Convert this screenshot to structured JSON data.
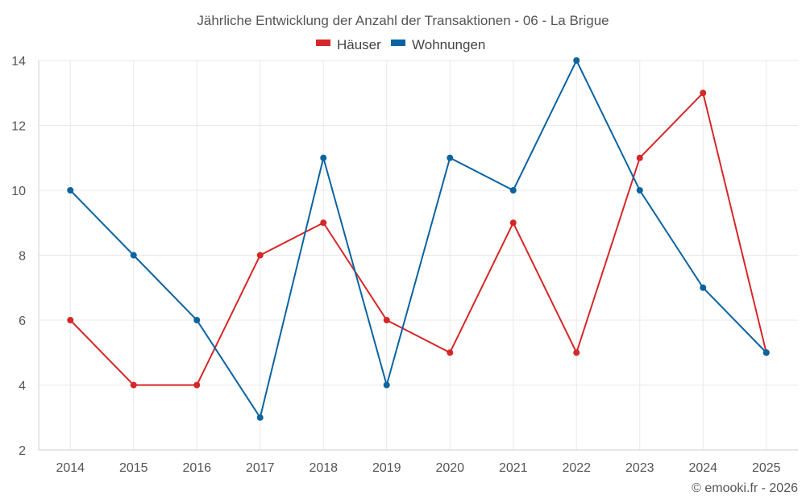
{
  "chart_data": {
    "type": "line",
    "title": "Jährliche Entwicklung der Anzahl der Transaktionen - 06 - La Brigue",
    "categories": [
      "2014",
      "2015",
      "2016",
      "2017",
      "2018",
      "2019",
      "2020",
      "2021",
      "2022",
      "2023",
      "2024",
      "2025"
    ],
    "series": [
      {
        "name": "Häuser",
        "color": "#d62728",
        "values": [
          6,
          4,
          4,
          8,
          9,
          6,
          5,
          9,
          5,
          11,
          13,
          5
        ]
      },
      {
        "name": "Wohnungen",
        "color": "#0b64a0",
        "values": [
          10,
          8,
          6,
          3,
          11,
          4,
          11,
          10,
          14,
          10,
          7,
          5
        ]
      }
    ],
    "ylim": [
      2,
      14
    ],
    "yticks": [
      2,
      4,
      6,
      8,
      10,
      12,
      14
    ],
    "grid": true,
    "legend_position": "top-center",
    "xlabel": "",
    "ylabel": ""
  },
  "credit": "© emooki.fr - 2026"
}
